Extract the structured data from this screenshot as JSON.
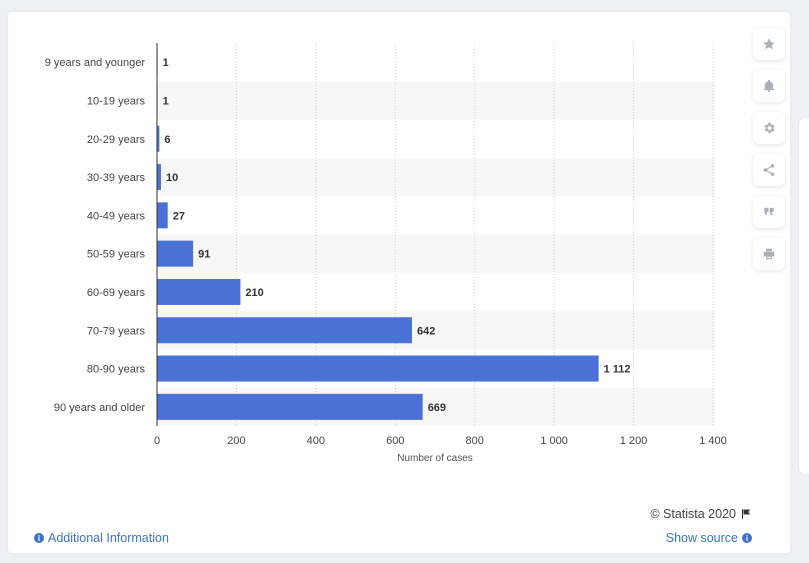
{
  "chart_data": {
    "type": "bar",
    "orientation": "horizontal",
    "categories": [
      "9 years and younger",
      "10-19 years",
      "20-29 years",
      "30-39 years",
      "40-49 years",
      "50-59 years",
      "60-69 years",
      "70-79 years",
      "80-90 years",
      "90 years and older"
    ],
    "values": [
      1,
      1,
      6,
      10,
      27,
      91,
      210,
      642,
      1112,
      669
    ],
    "value_labels": [
      "1",
      "1",
      "6",
      "10",
      "27",
      "91",
      "210",
      "642",
      "1 112",
      "669"
    ],
    "xlabel": "Number of cases",
    "xlim": [
      0,
      1400
    ],
    "xticks": [
      0,
      200,
      400,
      600,
      800,
      1000,
      1200,
      1400
    ],
    "xtick_labels": [
      "0",
      "200",
      "400",
      "600",
      "800",
      "1 000",
      "1 200",
      "1 400"
    ],
    "bar_color": "#4a72d6",
    "grid": true
  },
  "footer": {
    "additional_info": "Additional Information",
    "credit": "© Statista 2020",
    "show_source": "Show source"
  },
  "toolbar": {
    "icons": [
      "star-icon",
      "bell-icon",
      "gear-icon",
      "share-icon",
      "quote-icon",
      "print-icon"
    ]
  }
}
